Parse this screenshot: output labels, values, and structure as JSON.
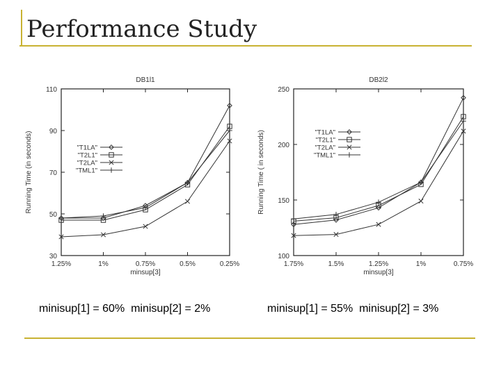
{
  "slide": {
    "title": "Performance Study",
    "caption_left": "minisup[1] = 60%  minisup[2] = 2%",
    "caption_right": "minisup[1] = 55%  minisup[2] = 3%"
  },
  "colors": {
    "accent": "#c8b232"
  },
  "chart_data": [
    {
      "type": "line",
      "title": "DB1l1",
      "xlabel": "minsup[3]",
      "ylabel": "Running Time (in seconds)",
      "categories": [
        "1.25%",
        "1%",
        "0.75%",
        "0.5%",
        "0.25%"
      ],
      "ylim": [
        30,
        110
      ],
      "yticks": [
        30,
        50,
        70,
        90,
        110
      ],
      "legend": "middle-left",
      "series": [
        {
          "name": "\"T1LA\"",
          "marker": "diamond",
          "values": [
            48,
            48,
            54,
            65,
            102
          ]
        },
        {
          "name": "\"T2L1\"",
          "marker": "square",
          "values": [
            47,
            47,
            52,
            64,
            92
          ]
        },
        {
          "name": "\"T2LA\"",
          "marker": "x",
          "values": [
            39,
            40,
            44,
            56,
            85
          ]
        },
        {
          "name": "\"TML1\"",
          "marker": "plus",
          "values": [
            48,
            49,
            53,
            65,
            90
          ]
        }
      ]
    },
    {
      "type": "line",
      "title": "DB2l2",
      "xlabel": "minsup[3]",
      "ylabel": "Running Time ( in seconds)",
      "categories": [
        "1.75%",
        "1.5%",
        "1.25%",
        "1%",
        "0.75%"
      ],
      "ylim": [
        100,
        250
      ],
      "yticks": [
        100,
        150,
        200,
        250
      ],
      "legend": "upper-left",
      "series": [
        {
          "name": "\"T1LA\"",
          "marker": "diamond",
          "values": [
            128,
            132,
            143,
            166,
            242
          ]
        },
        {
          "name": "\"T2L1\"",
          "marker": "square",
          "values": [
            131,
            134,
            145,
            164,
            225
          ]
        },
        {
          "name": "\"T2LA\"",
          "marker": "x",
          "values": [
            118,
            119,
            128,
            149,
            212
          ]
        },
        {
          "name": "\"TML1\"",
          "marker": "plus",
          "values": [
            133,
            137,
            148,
            166,
            221
          ]
        }
      ]
    }
  ]
}
